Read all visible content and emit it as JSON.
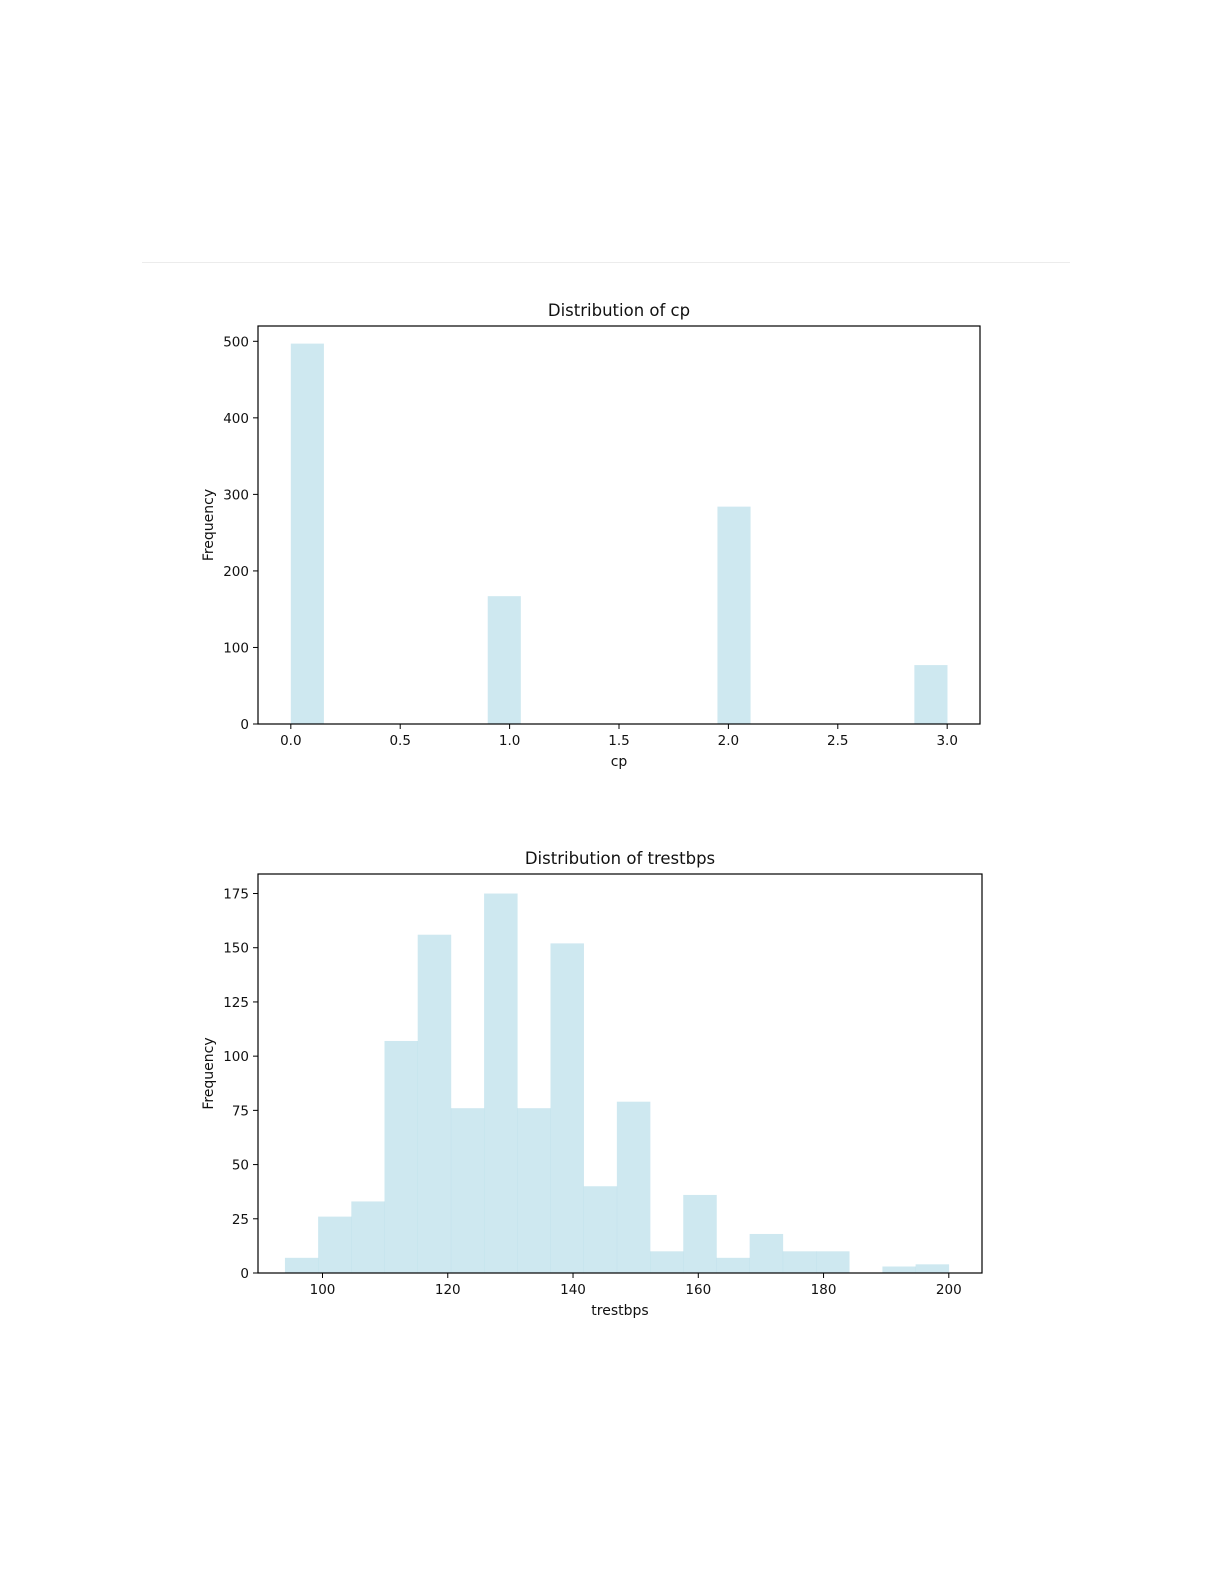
{
  "chart_data": [
    {
      "type": "bar",
      "title": "Distribution of cp",
      "xlabel": "cp",
      "ylabel": "Frequency",
      "xlim": [
        -0.15,
        3.15
      ],
      "ylim": [
        0,
        520
      ],
      "xticks": [
        0.0,
        0.5,
        1.0,
        1.5,
        2.0,
        2.5,
        3.0
      ],
      "xtick_labels": [
        "0.0",
        "0.5",
        "1.0",
        "1.5",
        "2.0",
        "2.5",
        "3.0"
      ],
      "yticks": [
        0,
        100,
        200,
        300,
        400,
        500
      ],
      "ytick_labels": [
        "0",
        "100",
        "200",
        "300",
        "400",
        "500"
      ],
      "grid": false,
      "bar_color": "#add8e6",
      "bins": [
        {
          "x0": 0.0,
          "x1": 0.15,
          "value": 497
        },
        {
          "x0": 0.9,
          "x1": 1.05,
          "value": 167
        },
        {
          "x0": 1.95,
          "x1": 2.1,
          "value": 284
        },
        {
          "x0": 2.85,
          "x1": 3.0,
          "value": 77
        }
      ]
    },
    {
      "type": "bar",
      "title": "Distribution of trestbps",
      "xlabel": "trestbps",
      "ylabel": "Frequency",
      "xlim": [
        89.7,
        205.3
      ],
      "ylim": [
        0,
        184
      ],
      "xticks": [
        100,
        120,
        140,
        160,
        180,
        200
      ],
      "xtick_labels": [
        "100",
        "120",
        "140",
        "160",
        "180",
        "200"
      ],
      "yticks": [
        0,
        25,
        50,
        75,
        100,
        125,
        150,
        175
      ],
      "ytick_labels": [
        "0",
        "25",
        "50",
        "75",
        "100",
        "125",
        "150",
        "175"
      ],
      "grid": false,
      "bar_color": "#add8e6",
      "bins": [
        {
          "x0": 94.0,
          "x1": 99.3,
          "value": 7
        },
        {
          "x0": 99.3,
          "x1": 104.6,
          "value": 26
        },
        {
          "x0": 104.6,
          "x1": 109.9,
          "value": 33
        },
        {
          "x0": 109.9,
          "x1": 115.2,
          "value": 107
        },
        {
          "x0": 115.2,
          "x1": 120.5,
          "value": 156
        },
        {
          "x0": 120.5,
          "x1": 125.8,
          "value": 76
        },
        {
          "x0": 125.8,
          "x1": 131.1,
          "value": 175
        },
        {
          "x0": 131.1,
          "x1": 136.4,
          "value": 76
        },
        {
          "x0": 136.4,
          "x1": 141.7,
          "value": 152
        },
        {
          "x0": 141.7,
          "x1": 147.0,
          "value": 40
        },
        {
          "x0": 147.0,
          "x1": 152.3,
          "value": 79
        },
        {
          "x0": 152.3,
          "x1": 157.6,
          "value": 10
        },
        {
          "x0": 157.6,
          "x1": 162.9,
          "value": 36
        },
        {
          "x0": 162.9,
          "x1": 168.2,
          "value": 7
        },
        {
          "x0": 168.2,
          "x1": 173.5,
          "value": 18
        },
        {
          "x0": 173.5,
          "x1": 178.8,
          "value": 10
        },
        {
          "x0": 178.8,
          "x1": 184.1,
          "value": 10
        },
        {
          "x0": 184.1,
          "x1": 189.4,
          "value": 0
        },
        {
          "x0": 189.4,
          "x1": 194.7,
          "value": 3
        },
        {
          "x0": 194.7,
          "x1": 200.0,
          "value": 4
        }
      ]
    }
  ]
}
